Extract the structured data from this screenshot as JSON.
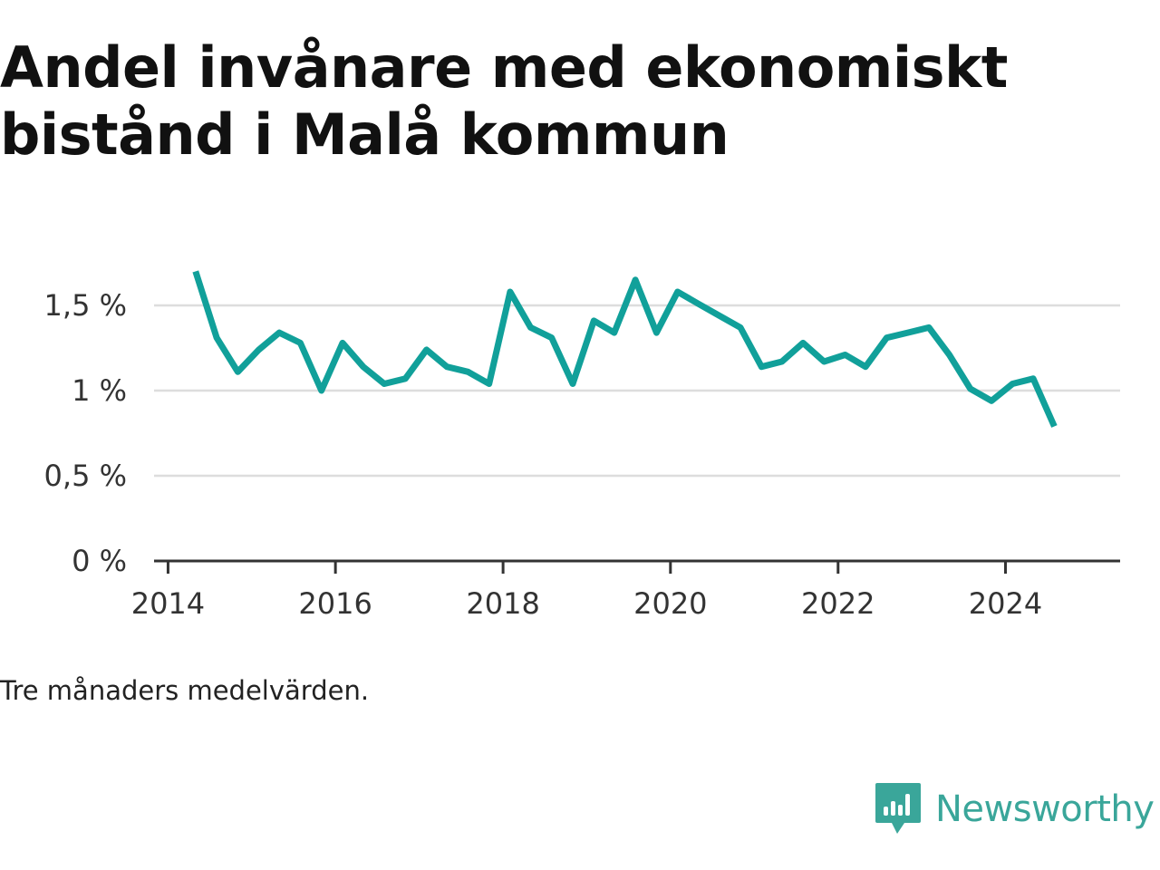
{
  "title": "Andel invånare med ekonomiskt bistånd i Malå kommun",
  "caption": "Tre månaders medelvärden.",
  "brand": {
    "name": "Newsworthy",
    "icon": "bar-chart-speech-bubble-icon",
    "color": "#3aa69a"
  },
  "chart_data": {
    "type": "line",
    "line_color": "#11a09a",
    "grid": true,
    "ylim": [
      0,
      1.75
    ],
    "yticks": [
      {
        "value": 0,
        "label": "0 %"
      },
      {
        "value": 0.5,
        "label": "0,5 %"
      },
      {
        "value": 1,
        "label": "1 %"
      },
      {
        "value": 1.5,
        "label": "1,5 %"
      }
    ],
    "xlim": [
      "2013-11-01",
      "2025-05-15"
    ],
    "xticks": [
      {
        "value": "2014-01-01",
        "label": "2014"
      },
      {
        "value": "2016-01-01",
        "label": "2016"
      },
      {
        "value": "2018-01-01",
        "label": "2018"
      },
      {
        "value": "2020-01-01",
        "label": "2020"
      },
      {
        "value": "2022-01-01",
        "label": "2022"
      },
      {
        "value": "2024-01-01",
        "label": "2024"
      }
    ],
    "series": [
      {
        "x": [
          "2014-05-01",
          "2014-08-01",
          "2014-11-01",
          "2015-02-01",
          "2015-05-01",
          "2015-08-01",
          "2015-11-01",
          "2016-02-01",
          "2016-05-01",
          "2016-08-01",
          "2016-11-01",
          "2017-02-01",
          "2017-05-01",
          "2017-08-01",
          "2017-11-01",
          "2018-02-01",
          "2018-05-01",
          "2018-08-01",
          "2018-11-01",
          "2019-02-01",
          "2019-05-01",
          "2019-08-01",
          "2019-11-01",
          "2020-02-01",
          "2020-05-01",
          "2020-08-01",
          "2020-11-01",
          "2021-02-01",
          "2021-05-01",
          "2021-08-01",
          "2021-11-01",
          "2022-02-01",
          "2022-05-01",
          "2022-08-01",
          "2022-11-01",
          "2023-02-01",
          "2023-05-01",
          "2023-08-01",
          "2023-11-01",
          "2024-02-01",
          "2024-05-01",
          "2024-08-01"
        ],
        "values": [
          1.7,
          1.31,
          1.11,
          1.24,
          1.34,
          1.28,
          1.0,
          1.28,
          1.14,
          1.04,
          1.07,
          1.24,
          1.14,
          1.11,
          1.04,
          1.58,
          1.37,
          1.31,
          1.04,
          1.41,
          1.34,
          1.65,
          1.34,
          1.58,
          1.51,
          1.44,
          1.37,
          1.14,
          1.17,
          1.28,
          1.17,
          1.21,
          1.14,
          1.31,
          1.34,
          1.37,
          1.21,
          1.01,
          0.94,
          1.04,
          1.07,
          0.79
        ]
      }
    ]
  }
}
